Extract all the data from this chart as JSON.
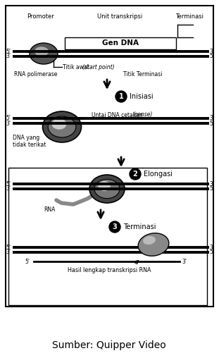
{
  "title": "Sumber: Quipper Video",
  "bg_color": "#ffffff",
  "border_color": "#000000",
  "text_color": "#000000",
  "label_promoter": "Promoter",
  "label_unit": "Unit transkripsi",
  "label_terminasi_top": "Terminasi",
  "label_gen_dna": "Gen DNA",
  "label_titik_awal": "Titik awal ",
  "label_start_point": "(start point)",
  "label_rna_pol": "RNA polimerase",
  "label_titik_term": "Titik Terminasi",
  "step1_num": "1",
  "step1_label": "Inisiasi",
  "label_untai": "Untai DNA cetakan ",
  "label_sense": "(sense)",
  "label_rna": "RNA",
  "label_dna_tidak1": "DNA yang",
  "label_dna_tidak2": "tidak terikat",
  "step2_num": "2",
  "step2_label": "Elongasi",
  "step3_num": "3",
  "step3_label": "Terminasi",
  "label_hasil": "Hasil lengkap transkripsi RNA"
}
